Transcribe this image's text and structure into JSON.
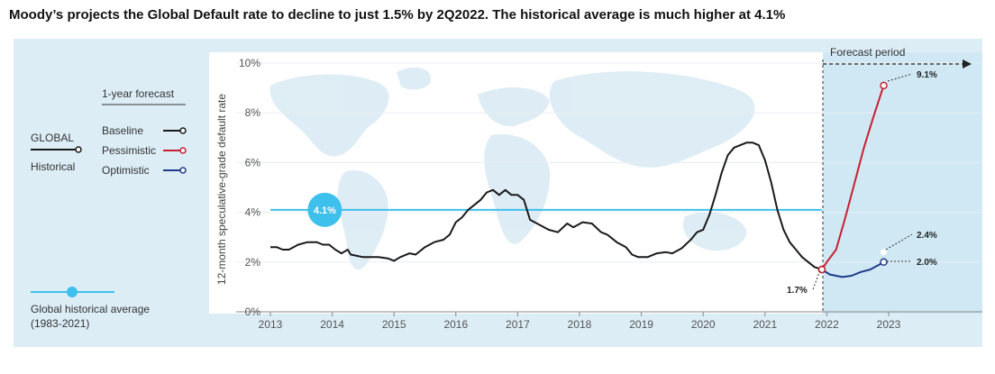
{
  "title": "Moody’s projects the Global Default rate to decline to just 1.5% by 2Q2022. The historical average is much higher at 4.1%",
  "legend": {
    "forecast_heading": "1-year forecast",
    "global_label": "GLOBAL",
    "historical_label": "Historical",
    "baseline": "Baseline",
    "pessimistic": "Pessimistic",
    "optimistic": "Optimistic",
    "average_line1": "Global historical average",
    "average_line2": "(1983-2021)"
  },
  "colors": {
    "panel": "#dcedf6",
    "plot": "#ffffff",
    "forecast_bg": "#cfe8f4",
    "historical": "#1a1a1a",
    "pessimistic": "#c8202f",
    "optimistic": "#1f3a8a",
    "average": "#3ec0ec",
    "axis_text": "#555555"
  },
  "chart_data": {
    "type": "line",
    "ylabel": "12-month speculative-grade default rate",
    "ylim": [
      0,
      10
    ],
    "xlim": [
      2013,
      2024
    ],
    "y_ticks": [
      "0%",
      "2%",
      "4%",
      "6%",
      "8%",
      "10%"
    ],
    "x_ticks": [
      "2013",
      "2014",
      "2015",
      "2016",
      "2017",
      "2018",
      "2019",
      "2020",
      "2021",
      "2022",
      "2023"
    ],
    "forecast_region_label": "Forecast period",
    "average": {
      "value": 4.1,
      "label": "4.1%"
    },
    "annotations": {
      "start": "1.7%",
      "baseline_end": "2.4%",
      "pessimistic_end": "9.1%",
      "optimistic_end": "2.0%"
    },
    "series": [
      {
        "key": "historical",
        "x": [
          2013.0,
          2013.1,
          2013.2,
          2013.3,
          2013.45,
          2013.6,
          2013.75,
          2013.85,
          2013.95,
          2014.05,
          2014.15,
          2014.25,
          2014.3,
          2014.4,
          2014.5,
          2014.6,
          2014.75,
          2014.9,
          2015.0,
          2015.1,
          2015.25,
          2015.35,
          2015.5,
          2015.65,
          2015.8,
          2015.9,
          2016.0,
          2016.1,
          2016.2,
          2016.3,
          2016.4,
          2016.5,
          2016.6,
          2016.7,
          2016.8,
          2016.9,
          2017.0,
          2017.1,
          2017.2,
          2017.35,
          2017.5,
          2017.65,
          2017.8,
          2017.9,
          2018.05,
          2018.2,
          2018.35,
          2018.45,
          2018.6,
          2018.75,
          2018.85,
          2018.95,
          2019.1,
          2019.25,
          2019.4,
          2019.5,
          2019.65,
          2019.8,
          2019.9,
          2020.0,
          2020.1,
          2020.2,
          2020.3,
          2020.4,
          2020.5,
          2020.6,
          2020.7,
          2020.8,
          2020.9,
          2021.0,
          2021.1,
          2021.2,
          2021.3,
          2021.4,
          2021.5,
          2021.6,
          2021.7,
          2021.8,
          2021.92
        ],
        "y": [
          2.6,
          2.6,
          2.5,
          2.5,
          2.7,
          2.8,
          2.8,
          2.7,
          2.7,
          2.5,
          2.35,
          2.5,
          2.3,
          2.25,
          2.2,
          2.2,
          2.2,
          2.15,
          2.05,
          2.2,
          2.35,
          2.3,
          2.6,
          2.8,
          2.9,
          3.1,
          3.6,
          3.8,
          4.1,
          4.3,
          4.5,
          4.8,
          4.9,
          4.7,
          4.9,
          4.7,
          4.7,
          4.5,
          3.7,
          3.5,
          3.3,
          3.2,
          3.55,
          3.4,
          3.6,
          3.55,
          3.2,
          3.1,
          2.8,
          2.6,
          2.3,
          2.2,
          2.2,
          2.35,
          2.4,
          2.35,
          2.55,
          2.9,
          3.2,
          3.3,
          3.9,
          4.7,
          5.6,
          6.3,
          6.6,
          6.7,
          6.8,
          6.8,
          6.7,
          6.1,
          5.2,
          4.1,
          3.3,
          2.8,
          2.5,
          2.2,
          2.0,
          1.8,
          1.7
        ]
      },
      {
        "key": "pessimistic",
        "x": [
          2021.92,
          2022.0,
          2022.15,
          2022.3,
          2022.45,
          2022.6,
          2022.75,
          2022.92
        ],
        "y": [
          1.7,
          2.0,
          2.5,
          3.8,
          5.2,
          6.6,
          7.8,
          9.1
        ]
      },
      {
        "key": "baseline",
        "x": [
          2021.92,
          2022.1,
          2022.25,
          2022.4,
          2022.55,
          2022.7,
          2022.85,
          2022.92
        ],
        "y": [
          1.7,
          1.5,
          1.55,
          1.7,
          1.85,
          2.0,
          2.25,
          2.4
        ]
      },
      {
        "key": "optimistic",
        "x": [
          2021.92,
          2022.05,
          2022.25,
          2022.4,
          2022.55,
          2022.7,
          2022.85,
          2022.92
        ],
        "y": [
          1.7,
          1.5,
          1.4,
          1.45,
          1.6,
          1.7,
          1.9,
          2.0
        ]
      }
    ]
  }
}
